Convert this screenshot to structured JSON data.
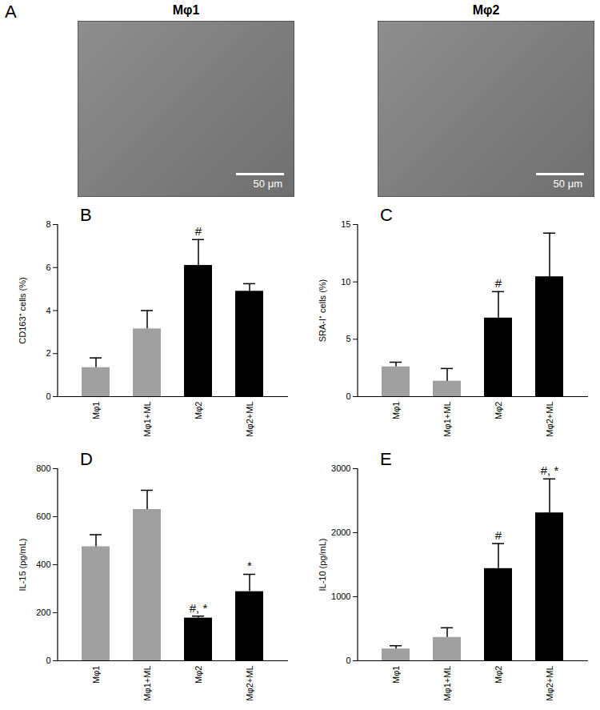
{
  "images": {
    "panel": "A",
    "panels": [
      {
        "title": "Mφ1",
        "scale_bar": "50 μm"
      },
      {
        "title": "Mφ2",
        "scale_bar": "50 μm"
      }
    ]
  },
  "chart_data": [
    {
      "type": "bar",
      "panel": "B",
      "y_label": "CD163⁺ cells (%)",
      "categories": [
        "Mφ1",
        "Mφ1+ML",
        "Mφ2",
        "Mφ2+ML"
      ],
      "values": [
        1.35,
        3.15,
        6.1,
        4.9
      ],
      "errors": [
        0.45,
        0.85,
        1.2,
        0.35
      ],
      "annotations": [
        null,
        null,
        "#",
        null
      ],
      "colors": [
        "#a0a0a0",
        "#a0a0a0",
        "#000000",
        "#000000"
      ],
      "ylim": [
        0,
        8
      ],
      "yticks": [
        0,
        2,
        4,
        6,
        8
      ]
    },
    {
      "type": "bar",
      "panel": "C",
      "y_label": "SRA-I⁺ cells (%)",
      "categories": [
        "Mφ1",
        "Mφ1+ML",
        "Mφ2",
        "Mφ2+ML"
      ],
      "values": [
        2.6,
        1.35,
        6.85,
        10.45
      ],
      "errors": [
        0.4,
        1.1,
        2.3,
        3.8
      ],
      "annotations": [
        null,
        null,
        "#",
        null
      ],
      "colors": [
        "#a0a0a0",
        "#a0a0a0",
        "#000000",
        "#000000"
      ],
      "ylim": [
        0,
        15
      ],
      "yticks": [
        0,
        5,
        10,
        15
      ]
    },
    {
      "type": "bar",
      "panel": "D",
      "y_label": "IL-15 (pg/mL)",
      "categories": [
        "Mφ1",
        "Mφ1+ML",
        "Mφ2",
        "Mφ2+ML"
      ],
      "values": [
        475,
        630,
        178,
        288
      ],
      "errors": [
        50,
        80,
        8,
        72
      ],
      "annotations": [
        null,
        null,
        "#, *",
        "*"
      ],
      "colors": [
        "#a0a0a0",
        "#a0a0a0",
        "#000000",
        "#000000"
      ],
      "ylim": [
        0,
        800
      ],
      "yticks": [
        0,
        200,
        400,
        600,
        800
      ]
    },
    {
      "type": "bar",
      "panel": "E",
      "y_label": "IL-10 (pg/mL)",
      "categories": [
        "Mφ1",
        "Mφ1+ML",
        "Mφ2",
        "Mφ2+ML"
      ],
      "values": [
        185,
        365,
        1440,
        2310
      ],
      "errors": [
        50,
        150,
        390,
        530
      ],
      "annotations": [
        null,
        null,
        "#",
        "#, *"
      ],
      "colors": [
        "#a0a0a0",
        "#a0a0a0",
        "#000000",
        "#000000"
      ],
      "ylim": [
        0,
        3000
      ],
      "yticks": [
        0,
        1000,
        2000,
        3000
      ]
    }
  ]
}
